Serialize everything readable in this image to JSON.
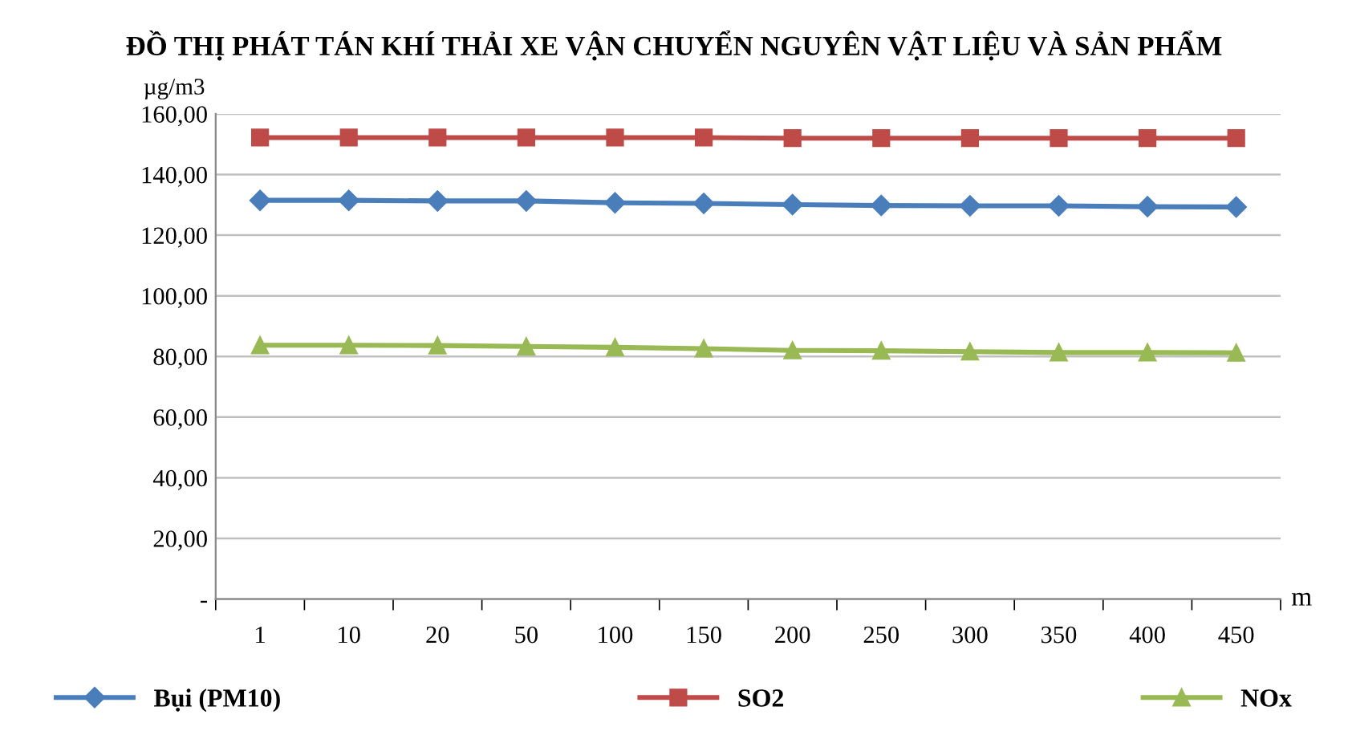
{
  "chart_data": {
    "type": "line",
    "title": "ĐỒ THỊ PHÁT TÁN KHÍ THẢI XE VẬN CHUYỂN NGUYÊN VẬT LIỆU VÀ SẢN PHẨM",
    "ylabel": "µg/m3",
    "xlabel": "m",
    "categories": [
      "1",
      "10",
      "20",
      "50",
      "100",
      "150",
      "200",
      "250",
      "300",
      "350",
      "400",
      "450"
    ],
    "series": [
      {
        "name": "Bụi (PM10)",
        "color": "#4a7ebb",
        "marker": "diamond",
        "values": [
          131.5,
          131.5,
          131.3,
          131.3,
          130.7,
          130.5,
          130.1,
          129.8,
          129.7,
          129.7,
          129.4,
          129.3
        ]
      },
      {
        "name": "SO2",
        "color": "#be4b48",
        "marker": "square",
        "values": [
          152.2,
          152.2,
          152.2,
          152.2,
          152.2,
          152.2,
          152.0,
          152.0,
          152.0,
          152.0,
          152.0,
          152.0
        ]
      },
      {
        "name": "NOx",
        "color": "#98b954",
        "marker": "triangle",
        "values": [
          83.7,
          83.7,
          83.6,
          83.3,
          83.0,
          82.6,
          82.0,
          81.9,
          81.6,
          81.3,
          81.3,
          81.2
        ]
      }
    ],
    "ylim": [
      0,
      160
    ],
    "yticks": [
      {
        "value": 0,
        "label": "-"
      },
      {
        "value": 20,
        "label": "20,00"
      },
      {
        "value": 40,
        "label": "40,00"
      },
      {
        "value": 60,
        "label": "60,00"
      },
      {
        "value": 80,
        "label": "80,00"
      },
      {
        "value": 100,
        "label": "100,00"
      },
      {
        "value": 120,
        "label": "120,00"
      },
      {
        "value": 140,
        "label": "140,00"
      },
      {
        "value": 160,
        "label": "160,00"
      }
    ],
    "grid": "y",
    "legend": "bottom",
    "line_style": "solid"
  }
}
